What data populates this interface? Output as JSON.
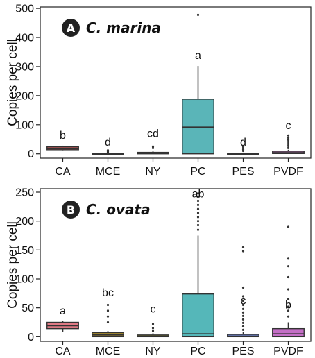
{
  "chart_data": [
    {
      "type": "box",
      "panel_letter": "A",
      "title": "C. marina",
      "ylabel": "Copies per cell",
      "xlabel": "",
      "categories": [
        "CA",
        "MCE",
        "NY",
        "PC",
        "PES",
        "PVDF"
      ],
      "ylim": [
        -15,
        505
      ],
      "yticks": [
        0,
        100,
        200,
        300,
        400,
        500
      ],
      "boxes": [
        {
          "category": "CA",
          "q1": 14,
          "median": 18,
          "q3": 24,
          "whisker_low": 12,
          "whisker_high": 28,
          "outliers": [],
          "color": "#c95a5a",
          "sig": "b"
        },
        {
          "category": "MCE",
          "q1": 0,
          "median": 1,
          "q3": 2,
          "whisker_low": 0,
          "whisker_high": 4,
          "outliers": [
            6,
            9,
            12
          ],
          "color": "#a0812d",
          "sig": "d"
        },
        {
          "category": "NY",
          "q1": 0,
          "median": 2,
          "q3": 5,
          "whisker_low": 0,
          "whisker_high": 10,
          "outliers": [
            20,
            25
          ],
          "color": "#7d7f2a",
          "sig": "cd"
        },
        {
          "category": "PC",
          "q1": 0,
          "median": 92,
          "q3": 188,
          "whisker_low": 0,
          "whisker_high": 302,
          "outliers": [
            478
          ],
          "color": "#5ab5b8",
          "sig": "a"
        },
        {
          "category": "PES",
          "q1": 0,
          "median": 0,
          "q3": 2,
          "whisker_low": 0,
          "whisker_high": 4,
          "outliers": [
            10,
            15,
            20,
            25
          ],
          "color": "#5b72a8",
          "sig": "d"
        },
        {
          "category": "PVDF",
          "q1": 1,
          "median": 4,
          "q3": 9,
          "whisker_low": 0,
          "whisker_high": 14,
          "outliers": [
            20,
            27,
            34,
            41,
            48,
            55,
            63
          ],
          "color": "#a966a5",
          "sig": "c"
        }
      ]
    },
    {
      "type": "box",
      "panel_letter": "B",
      "title": "C. ovata",
      "ylabel": "Copies per cell",
      "xlabel": "",
      "categories": [
        "CA",
        "MCE",
        "NY",
        "PC",
        "PES",
        "PVDF"
      ],
      "ylim": [
        -8,
        256
      ],
      "yticks": [
        0,
        50,
        100,
        150,
        200,
        250
      ],
      "boxes": [
        {
          "category": "CA",
          "q1": 14,
          "median": 19,
          "q3": 25,
          "whisker_low": 8,
          "whisker_high": 27,
          "outliers": [],
          "color": "#e07a85",
          "sig": "a"
        },
        {
          "category": "MCE",
          "q1": 0,
          "median": 3,
          "q3": 7,
          "whisker_low": 0,
          "whisker_high": 10,
          "outliers": [
            25,
            35,
            45,
            55
          ],
          "color": "#b5952d",
          "sig": "bc"
        },
        {
          "category": "NY",
          "q1": 0,
          "median": 1,
          "q3": 3,
          "whisker_low": 0,
          "whisker_high": 6,
          "outliers": [
            10,
            15,
            22
          ],
          "color": "#969a2e",
          "sig": "c"
        },
        {
          "category": "PC",
          "q1": 0,
          "median": 5,
          "q3": 74,
          "whisker_low": 0,
          "whisker_high": 175,
          "outliers": [
            185,
            193,
            200,
            207,
            214,
            221,
            228,
            235,
            242,
            248
          ],
          "color": "#55b7b9",
          "sig": "ab"
        },
        {
          "category": "PES",
          "q1": 0,
          "median": 1,
          "q3": 4,
          "whisker_low": 0,
          "whisker_high": 8,
          "outliers": [
            12,
            18,
            24,
            30,
            36,
            42,
            48,
            55,
            62,
            70,
            85,
            148,
            155
          ],
          "color": "#6f83c4",
          "sig": "c"
        },
        {
          "category": "PVDF",
          "q1": 0,
          "median": 5,
          "q3": 14,
          "whisker_low": 0,
          "whisker_high": 25,
          "outliers": [
            35,
            45,
            52,
            65,
            82,
            103,
            122,
            135,
            190
          ],
          "color": "#c46fc6",
          "sig": "b"
        }
      ]
    }
  ]
}
